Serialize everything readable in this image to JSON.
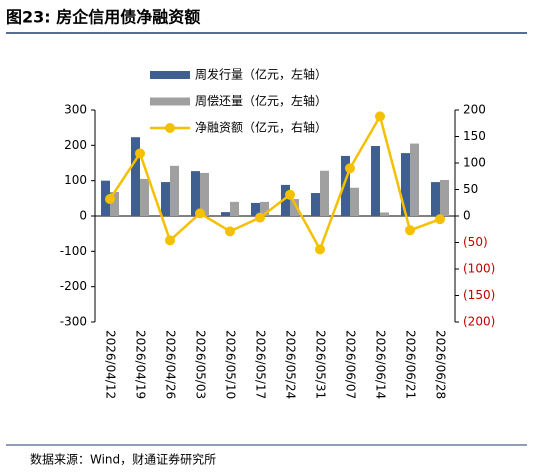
{
  "title": "图23: 房企信用债净融资额",
  "source": "数据来源：Wind，财通证券研究所",
  "chart_data": {
    "type": "bar_line",
    "categories": [
      "2026/04/12",
      "2026/04/19",
      "2026/04/26",
      "2026/05/03",
      "2026/05/10",
      "2026/05/17",
      "2026/05/24",
      "2026/05/31",
      "2026/06/07",
      "2026/06/14",
      "2026/06/21",
      "2026/06/28"
    ],
    "series": [
      {
        "name": "周发行量（亿元，左轴）",
        "type": "bar",
        "color": "#3e5f8f",
        "values": [
          100,
          223,
          96,
          127,
          11,
          37,
          88,
          65,
          170,
          198,
          178,
          96
        ]
      },
      {
        "name": "周偿还量（亿元，左轴）",
        "type": "bar",
        "color": "#a0a0a0",
        "values": [
          68,
          105,
          142,
          122,
          40,
          40,
          48,
          128,
          80,
          10,
          205,
          102
        ]
      },
      {
        "name": "净融资额（亿元，右轴）",
        "type": "line",
        "axis": "y2",
        "color": "#f5c000",
        "values": [
          32,
          118,
          -46,
          5,
          -29,
          -3,
          40,
          -63,
          90,
          188,
          -27,
          -6
        ]
      }
    ],
    "ylim": [
      -300,
      300
    ],
    "yticks": [
      -300,
      -200,
      -100,
      0,
      100,
      200,
      300
    ],
    "y2lim": [
      -200,
      200
    ],
    "y2ticks": [
      {
        "value": -200,
        "label": "(200)"
      },
      {
        "value": -150,
        "label": "(150)"
      },
      {
        "value": -100,
        "label": "(100)"
      },
      {
        "value": -50,
        "label": "(50)"
      },
      0,
      50,
      100,
      150,
      200
    ],
    "y2_negative_tick_color": "#c00000",
    "legend": "top-left"
  }
}
